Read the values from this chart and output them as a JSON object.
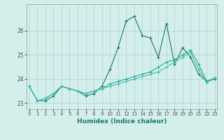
{
  "xlabel": "Humidex (Indice chaleur)",
  "x": [
    0,
    1,
    2,
    3,
    4,
    5,
    6,
    7,
    8,
    9,
    10,
    11,
    12,
    13,
    14,
    15,
    16,
    17,
    18,
    19,
    20,
    21,
    22,
    23
  ],
  "series1": [
    23.7,
    23.1,
    23.1,
    23.3,
    23.7,
    23.6,
    23.5,
    23.3,
    23.4,
    23.7,
    24.4,
    25.3,
    26.4,
    26.6,
    25.8,
    25.7,
    24.9,
    26.3,
    24.6,
    25.3,
    24.9,
    24.2,
    23.9,
    24.0
  ],
  "series2": [
    23.7,
    23.1,
    23.2,
    23.4,
    23.7,
    23.6,
    23.5,
    23.4,
    23.5,
    23.6,
    23.8,
    23.9,
    24.0,
    24.1,
    24.2,
    24.3,
    24.5,
    24.7,
    24.8,
    25.0,
    25.2,
    24.6,
    23.9,
    24.05
  ],
  "series3": [
    23.7,
    23.1,
    23.2,
    23.4,
    23.7,
    23.6,
    23.5,
    23.4,
    23.5,
    23.6,
    23.7,
    23.8,
    23.9,
    24.0,
    24.1,
    24.2,
    24.3,
    24.5,
    24.7,
    24.9,
    25.1,
    24.4,
    23.85,
    24.05
  ],
  "line_color1": "#1a7a6a",
  "line_color2": "#2aaa90",
  "line_color3": "#40c0b0",
  "bg_color": "#d4eeec",
  "grid_color": "#aed4d0",
  "ylim_min": 22.75,
  "ylim_max": 27.1,
  "yticks": [
    23,
    24,
    25,
    26
  ],
  "xlim_min": -0.3,
  "xlim_max": 23.3
}
